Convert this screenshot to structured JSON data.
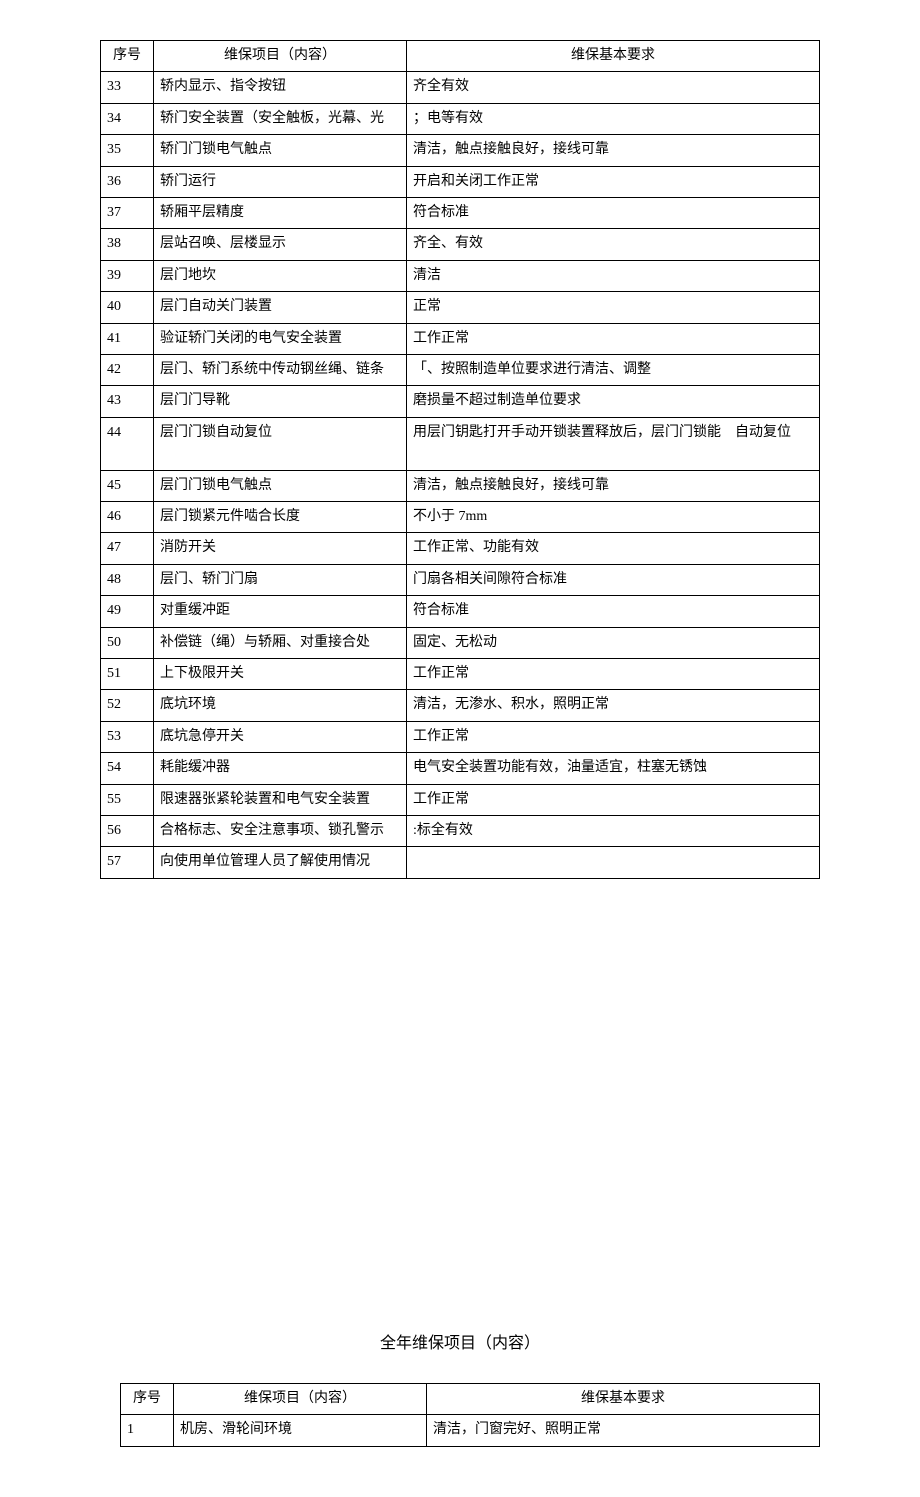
{
  "table1": {
    "headers": {
      "seq": "序号",
      "item": "维保项目（内容）",
      "req": "维保基本要求"
    },
    "rows": [
      {
        "seq": "33",
        "item": "轿内显示、指令按钮",
        "req": "齐全有效"
      },
      {
        "seq": "34",
        "item": "轿门安全装置（安全触板，光幕、光",
        "req": "；电等有效"
      },
      {
        "seq": "35",
        "item": "轿门门锁电气触点",
        "req": "清洁，触点接触良好，接线可靠"
      },
      {
        "seq": "36",
        "item": "轿门运行",
        "req": "开启和关闭工作正常"
      },
      {
        "seq": "37",
        "item": "轿厢平层精度",
        "req": "符合标准"
      },
      {
        "seq": "38",
        "item": "层站召唤、层楼显示",
        "req": "齐全、有效"
      },
      {
        "seq": "39",
        "item": "层门地坎",
        "req": "清洁"
      },
      {
        "seq": "40",
        "item": "层门自动关门装置",
        "req": "正常"
      },
      {
        "seq": "41",
        "item": "验证轿门关闭的电气安全装置",
        "req": "工作正常"
      },
      {
        "seq": "42",
        "item": "层门、轿门系统中传动钢丝绳、链条",
        "req": "「、按照制造单位要求进行清洁、调整"
      },
      {
        "seq": "43",
        "item": "层门门导靴",
        "req": "磨损量不超过制造单位要求"
      },
      {
        "seq": "44",
        "item": "层门门锁自动复位",
        "req": "用层门钥匙打开手动开锁装置释放后，层门门锁能　自动复位",
        "tall": true
      },
      {
        "seq": "45",
        "item": "层门门锁电气触点",
        "req": "清洁，触点接触良好，接线可靠"
      },
      {
        "seq": "46",
        "item": "层门锁紧元件啮合长度",
        "req": "不小于 7mm"
      },
      {
        "seq": "47",
        "item": "消防开关",
        "req": "工作正常、功能有效"
      },
      {
        "seq": "48",
        "item": "层门、轿门门扇",
        "req": "门扇各相关间隙符合标准"
      },
      {
        "seq": "49",
        "item": "对重缓冲距",
        "req": "符合标准"
      },
      {
        "seq": "50",
        "item": "补偿链（绳）与轿厢、对重接合处",
        "req": "固定、无松动"
      },
      {
        "seq": "51",
        "item": "上下极限开关",
        "req": "工作正常"
      },
      {
        "seq": "52",
        "item": "底坑环境",
        "req": "清洁，无渗水、积水，照明正常"
      },
      {
        "seq": "53",
        "item": "底坑急停开关",
        "req": "工作正常"
      },
      {
        "seq": "54",
        "item": "耗能缓冲器",
        "req": "电气安全装置功能有效，油量适宜，柱塞无锈蚀"
      },
      {
        "seq": "55",
        "item": "限速器张紧轮装置和电气安全装置",
        "req": "工作正常"
      },
      {
        "seq": "56",
        "item": "合格标志、安全注意事项、锁孔警示",
        "req": ":标全有效"
      },
      {
        "seq": "57",
        "item": "向使用单位管理人员了解使用情况",
        "req": ""
      }
    ]
  },
  "section2_title": "全年维保项目（内容）",
  "table2": {
    "headers": {
      "seq": "序号",
      "item": "维保项目（内容）",
      "req": "维保基本要求"
    },
    "rows": [
      {
        "seq": "1",
        "item": "机房、滑轮间环境",
        "req": "清洁，门窗完好、照明正常"
      }
    ]
  }
}
